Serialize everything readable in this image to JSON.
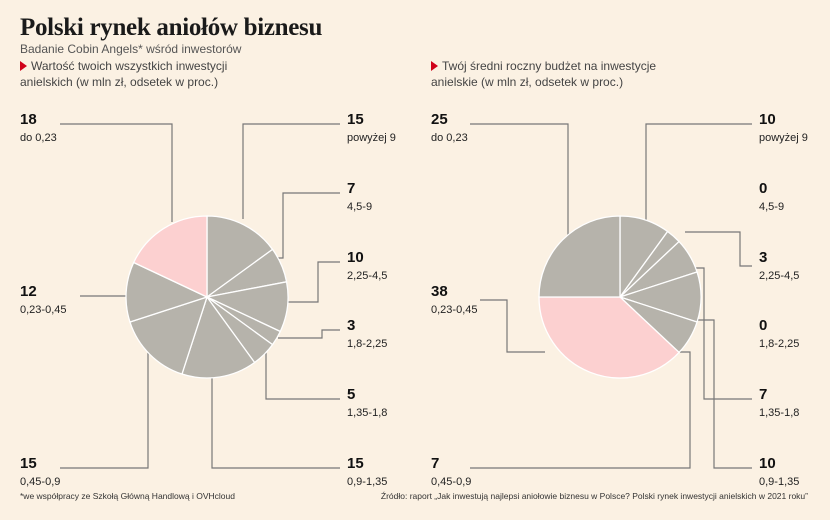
{
  "header": {
    "title": "Polski rynek aniołów biznesu",
    "subtitle": "Badanie Cobin Angels* wśród inwestorów"
  },
  "footer": {
    "note": "*we współpracy ze Szkołą Główną Handlową i OVHcloud",
    "source": "Źródło: raport „Jak inwestują najlepsi aniołowie biznesu w Polsce? Polski rynek inwestycji anielskich w 2021 roku”"
  },
  "colors": {
    "slice": "#b6b3ab",
    "highlight": "#fcd0d0",
    "leader": "#777777",
    "accent": "#d0021b"
  },
  "chart_data": [
    {
      "type": "pie",
      "title": "Wartość twoich wszystkich inwestycji anielskich (w mln zł, odsetek w proc.)",
      "title_lines": [
        "Wartość twoich wszystkich inwestycji",
        "anielskich (w mln zł, odsetek w proc.)"
      ],
      "slices": [
        {
          "label": "powyżej 9",
          "value": 15,
          "highlight": false
        },
        {
          "label": "4,5-9",
          "value": 7,
          "highlight": false
        },
        {
          "label": "2,25-4,5",
          "value": 10,
          "highlight": false
        },
        {
          "label": "1,8-2,25",
          "value": 3,
          "highlight": false
        },
        {
          "label": "1,35-1,8",
          "value": 5,
          "highlight": false
        },
        {
          "label": "0,9-1,35",
          "value": 15,
          "highlight": false
        },
        {
          "label": "0,45-0,9",
          "value": 15,
          "highlight": false
        },
        {
          "label": "0,23-0,45",
          "value": 12,
          "highlight": false
        },
        {
          "label": "do 0,23",
          "value": 18,
          "highlight": true
        }
      ]
    },
    {
      "type": "pie",
      "title": "Twój średni roczny budżet na inwestycje anielskie (w mln zł, odsetek w proc.)",
      "title_lines": [
        "Twój średni roczny budżet na inwestycje",
        "anielskie (w mln zł, odsetek w proc.)"
      ],
      "slices": [
        {
          "label": "powyżej 9",
          "value": 10,
          "highlight": false
        },
        {
          "label": "4,5-9",
          "value": 0,
          "highlight": false
        },
        {
          "label": "2,25-4,5",
          "value": 3,
          "highlight": false
        },
        {
          "label": "1,8-2,25",
          "value": 0,
          "highlight": false
        },
        {
          "label": "1,35-1,8",
          "value": 7,
          "highlight": false
        },
        {
          "label": "0,9-1,35",
          "value": 10,
          "highlight": false
        },
        {
          "label": "0,45-0,9",
          "value": 7,
          "highlight": false
        },
        {
          "label": "0,23-0,45",
          "value": 38,
          "highlight": true
        },
        {
          "label": "do 0,23",
          "value": 25,
          "highlight": false
        }
      ]
    }
  ]
}
